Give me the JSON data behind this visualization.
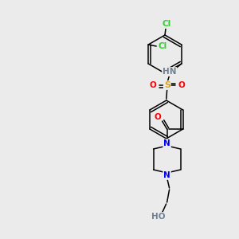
{
  "background_color": "#ebebeb",
  "atom_colors": {
    "C": "#000000",
    "H": "#708090",
    "N": "#0000FF",
    "O": "#FF0000",
    "S": "#DAA520",
    "Cl": "#32CD32"
  },
  "bond_color": "#000000",
  "font_size": 7.5
}
